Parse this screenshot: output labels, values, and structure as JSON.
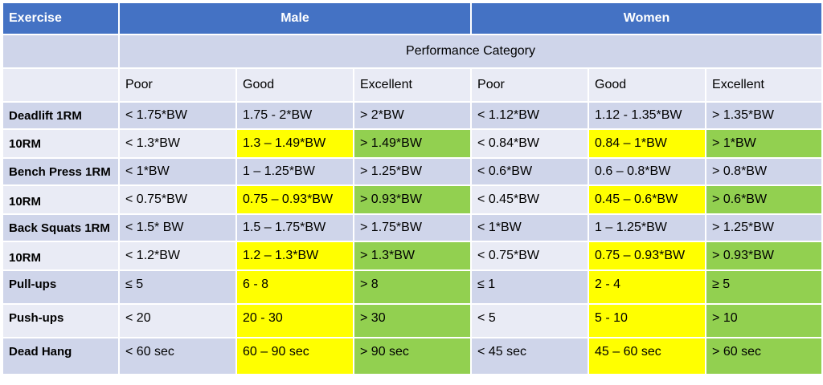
{
  "header": {
    "exercise": "Exercise",
    "male": "Male",
    "women": "Women"
  },
  "performance_category": "Performance Category",
  "levels": [
    "Poor",
    "Good",
    "Excellent",
    "Poor",
    "Good",
    "Excellent"
  ],
  "rows": [
    {
      "exercise": "Deadlift 1RM",
      "cells": [
        "< 1.75*BW",
        "1.75 - 2*BW",
        "> 2*BW",
        "< 1.12*BW",
        "1.12 - 1.35*BW",
        "> 1.35*BW"
      ]
    },
    {
      "exercise": "10RM",
      "cells": [
        "< 1.3*BW",
        "1.3 – 1.49*BW",
        "> 1.49*BW",
        "< 0.84*BW",
        "0.84 – 1*BW",
        "> 1*BW"
      ]
    },
    {
      "exercise": "Bench Press 1RM",
      "cells": [
        "< 1*BW",
        "1 – 1.25*BW",
        "> 1.25*BW",
        "< 0.6*BW",
        "0.6 – 0.8*BW",
        "> 0.8*BW"
      ]
    },
    {
      "exercise": "10RM",
      "cells": [
        "< 0.75*BW",
        "0.75 – 0.93*BW",
        "> 0.93*BW",
        "< 0.45*BW",
        "0.45 – 0.6*BW",
        "> 0.6*BW"
      ]
    },
    {
      "exercise": "Back Squats 1RM",
      "cells": [
        "< 1.5* BW",
        "1.5 – 1.75*BW",
        "> 1.75*BW",
        "< 1*BW",
        "1 – 1.25*BW",
        "> 1.25*BW"
      ]
    },
    {
      "exercise": "10RM",
      "cells": [
        "< 1.2*BW",
        "1.2 – 1.3*BW",
        "> 1.3*BW",
        "< 0.75*BW",
        "0.75 – 0.93*BW",
        "> 0.93*BW"
      ]
    },
    {
      "exercise": "Pull-ups",
      "cells": [
        "≤ 5",
        "6 - 8",
        "> 8",
        "≤ 1",
        "2 - 4",
        "≥ 5"
      ]
    },
    {
      "exercise": "Push-ups",
      "cells": [
        "< 20",
        "20 - 30",
        "> 30",
        "< 5",
        "5 - 10",
        "> 10"
      ]
    },
    {
      "exercise": "Dead Hang",
      "cells": [
        "< 60 sec",
        "60 – 90 sec",
        "> 90 sec",
        "< 45 sec",
        "45 – 60 sec",
        "> 60 sec"
      ]
    }
  ],
  "colors": {
    "header_blue": "#4472c4",
    "row_dark": "#cfd5ea",
    "row_light": "#e9ebf5",
    "highlight_yellow": "#ffff00",
    "highlight_green": "#92d050"
  }
}
